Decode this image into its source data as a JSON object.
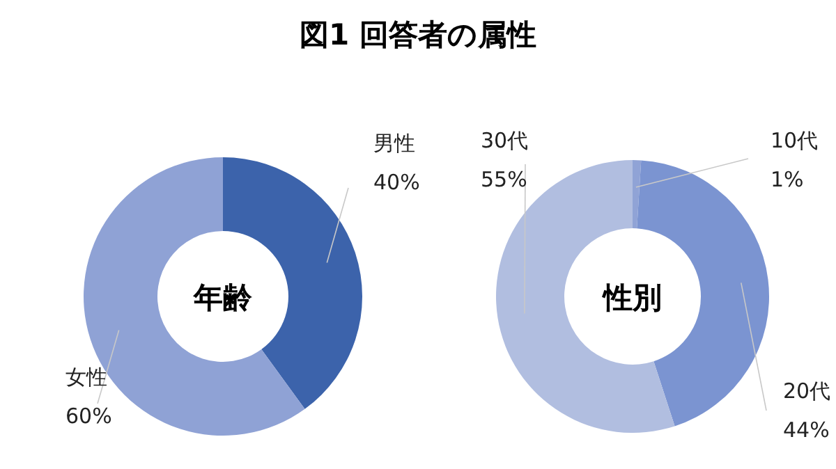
{
  "chart_data": [
    {
      "type": "donut",
      "title": "図1 回答者の属性",
      "annotations": [
        "年齢"
      ],
      "categories": [
        "男性",
        "女性"
      ],
      "values": [
        40,
        60
      ],
      "value_labels": [
        "40%",
        "60%"
      ],
      "colors": [
        "#3c63ab",
        "#8fa2d5"
      ]
    },
    {
      "type": "donut",
      "annotations": [
        "性別"
      ],
      "categories": [
        "10代",
        "20代",
        "30代"
      ],
      "values": [
        1,
        44,
        55
      ],
      "value_labels": [
        "1%",
        "44%",
        "55%"
      ],
      "colors": [
        "#90a3d6",
        "#7b94d1",
        "#b1bee0"
      ]
    }
  ]
}
